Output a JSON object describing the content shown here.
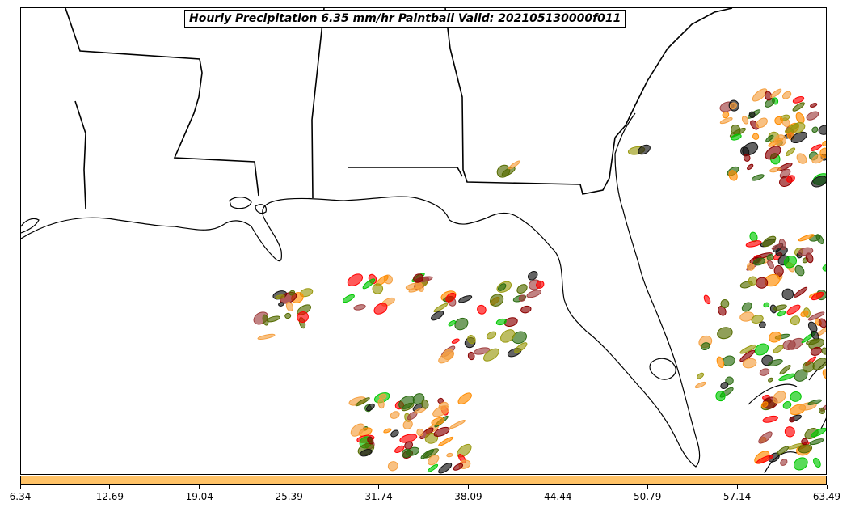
{
  "title": "Hourly Precipitation 6.35 mm/hr Paintball Valid: 202105130000f011",
  "colorbar": {
    "fill_color": "#ffc266",
    "ticks": [
      "6.34",
      "12.69",
      "19.04",
      "25.39",
      "31.74",
      "38.09",
      "44.44",
      "50.79",
      "57.14",
      "63.49"
    ]
  },
  "map": {
    "region": "US Gulf Coast and Southeast",
    "coastline_color": "#000000",
    "member_colors": [
      "#8b0000",
      "#ff0000",
      "#ff8c00",
      "#f5a040",
      "#9a9a10",
      "#556b00",
      "#00c800",
      "#2a6b10",
      "#a04040",
      "#111111"
    ]
  }
}
